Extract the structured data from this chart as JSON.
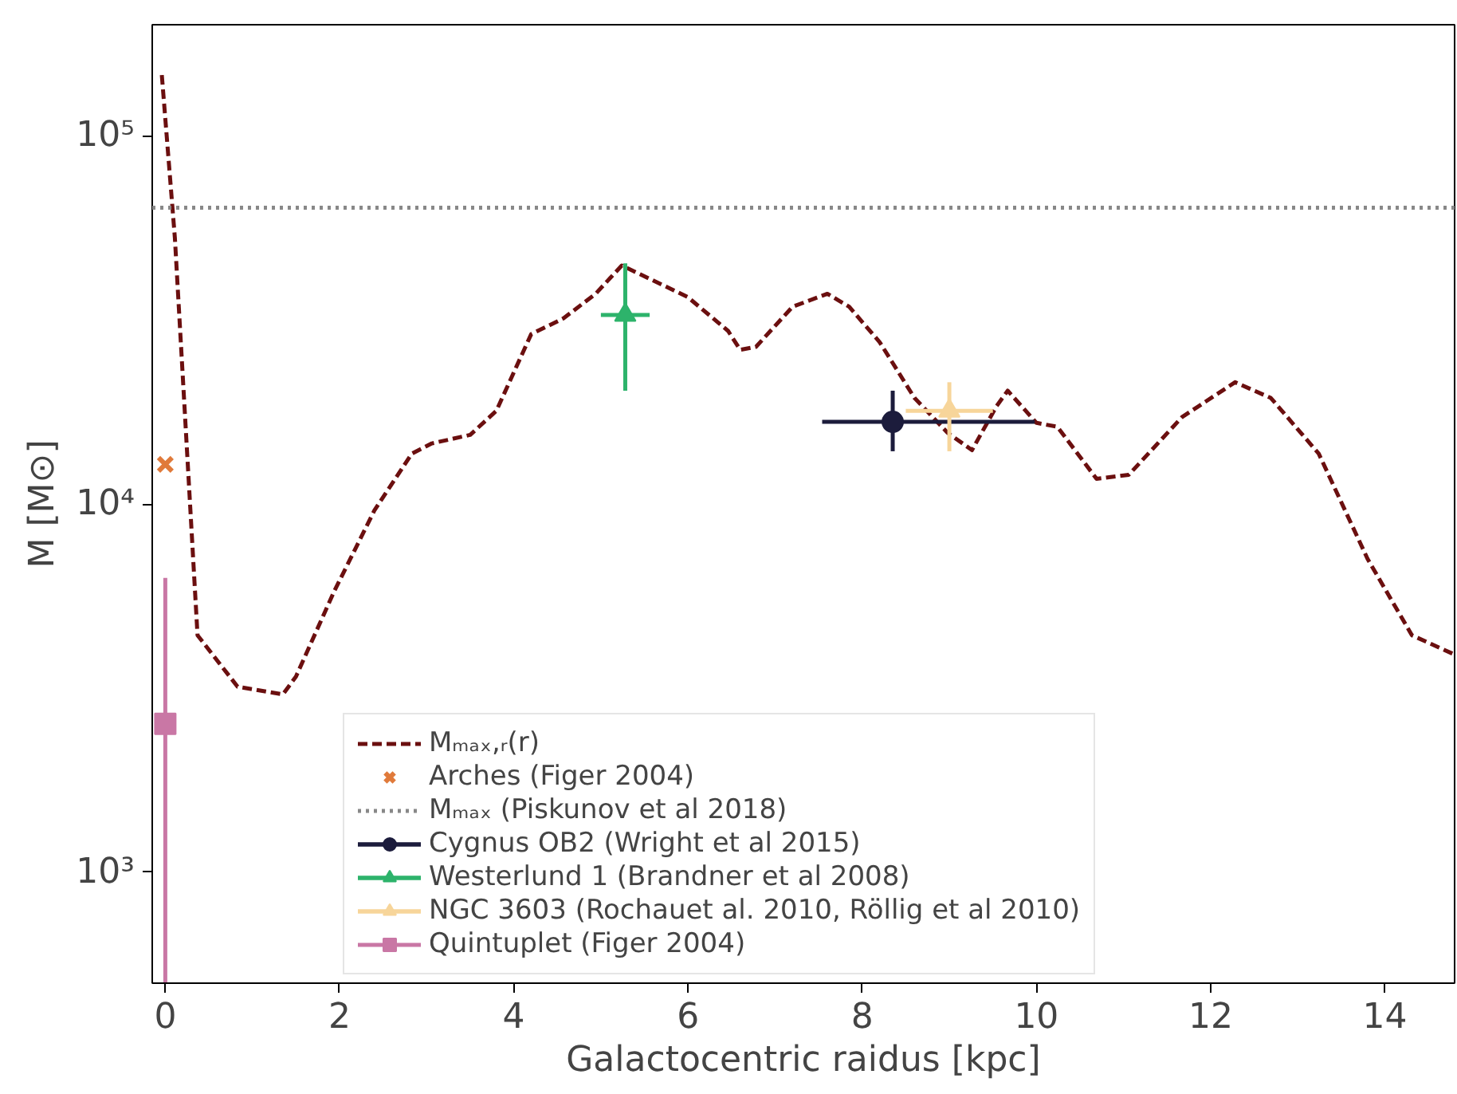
{
  "chart_data": {
    "type": "scatter",
    "xlabel": "Galactocentric raidus [kpc]",
    "ylabel": "M [M⊙]",
    "log": "y",
    "xlim": [
      -0.15,
      14.8
    ],
    "ylim": [
      500,
      200000
    ],
    "xticks": [
      0,
      2,
      4,
      6,
      8,
      10,
      12,
      14
    ],
    "yticks": [
      {
        "value": 1000,
        "label": "10³"
      },
      {
        "value": 10000,
        "label": "10⁴"
      },
      {
        "value": 100000,
        "label": "10⁵"
      }
    ],
    "grid": false,
    "legend": "bottom",
    "series": [
      {
        "name": "Mₘₐₓ,ᵣ(r)",
        "type": "line",
        "line_style": "dashed",
        "marker": "none",
        "color": "#6b0f0f",
        "x": [
          -0.04,
          0.11,
          0.37,
          0.83,
          1.35,
          1.5,
          1.94,
          2.4,
          2.83,
          3.06,
          3.5,
          3.8,
          4.2,
          4.57,
          4.94,
          5.24,
          5.74,
          6.0,
          6.46,
          6.6,
          6.78,
          7.2,
          7.6,
          7.85,
          8.2,
          8.6,
          8.98,
          9.26,
          9.54,
          9.67,
          10.0,
          10.24,
          10.69,
          11.06,
          11.67,
          12.28,
          12.69,
          13.24,
          13.8,
          14.31,
          14.8
        ],
        "values": [
          146000,
          52700,
          4400,
          3190,
          3040,
          3400,
          5800,
          9600,
          13700,
          14600,
          15400,
          17900,
          28900,
          31900,
          37200,
          44400,
          39000,
          36400,
          29500,
          26200,
          26700,
          34300,
          37200,
          34300,
          27500,
          19400,
          15600,
          14000,
          18400,
          20300,
          16600,
          16200,
          11700,
          12000,
          17200,
          21400,
          19400,
          13700,
          7100,
          4400,
          3900
        ]
      },
      {
        "name": "Arches (Figer 2004)",
        "marker": "cross",
        "color": "#e07a3a",
        "x": [
          0.0
        ],
        "values": [
          12800
        ]
      },
      {
        "name": "Cygnus OB2 (Wright et al 2015)",
        "marker": "circle",
        "color": "#1c1c3c",
        "x": [
          8.35
        ],
        "values": [
          16700
        ],
        "errors": [
          [
            13900,
            20300
          ]
        ],
        "xerrors": [
          [
            7.54,
            9.98
          ]
        ]
      },
      {
        "name": "Westerlund 1 (Brandner et al 2008)",
        "marker": "triangle",
        "color": "#2db36b",
        "x": [
          5.28
        ],
        "values": [
          32600
        ],
        "errors": [
          [
            20300,
            45000
          ]
        ],
        "xerrors": [
          [
            5.0,
            5.56
          ]
        ]
      },
      {
        "name": "NGC 3603 (Rochauet al. 2010, Röllig et al 2010)",
        "marker": "triangle",
        "color": "#f7d59a",
        "x": [
          9.0
        ],
        "values": [
          17900
        ],
        "errors": [
          [
            13900,
            21400
          ]
        ],
        "xerrors": [
          [
            8.5,
            9.5
          ]
        ]
      },
      {
        "name": "Quintuplet (Figer 2004)",
        "marker": "square",
        "color": "#c977a5",
        "x": [
          0.0
        ],
        "values": [
          2530
        ],
        "errors": [
          [
            500,
            6300
          ]
        ]
      }
    ],
    "ref_lines": [
      {
        "axis": "y",
        "value": 63700,
        "label": "Mₘₐₓ (Piskunov et al 2018)",
        "color": "#888888",
        "line_style": "dotted"
      }
    ]
  }
}
